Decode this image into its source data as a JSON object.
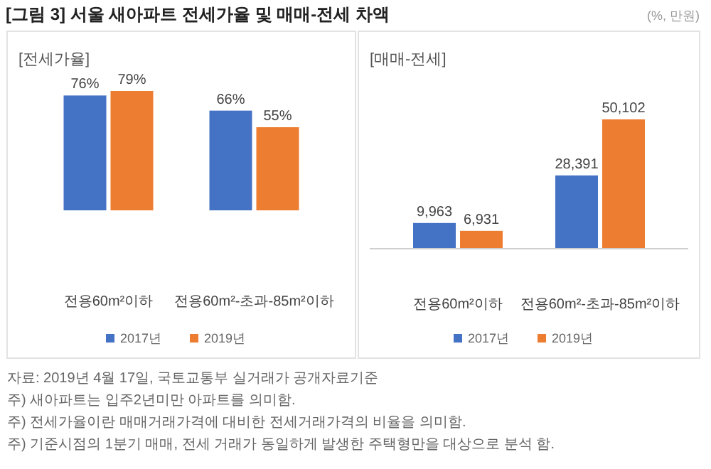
{
  "chart_data": [
    {
      "type": "bar",
      "title": "[전세가율]",
      "categories": [
        "전용60m²이하",
        "전용60m²-초과-85m²이하"
      ],
      "series": [
        {
          "name": "2017년",
          "color": "#4472c4",
          "values": [
            76,
            66
          ],
          "value_labels": [
            "76%",
            "66%"
          ]
        },
        {
          "name": "2019년",
          "color": "#ed7d31",
          "values": [
            79,
            55
          ],
          "value_labels": [
            "79%",
            "55%"
          ]
        }
      ],
      "legend": "bottom",
      "annotations": [
        "[그림 3] 서울 새아파트 전세가율 및 매매-전세 차액",
        "(%, 만원)",
        "자료: 2019년 4월 17일, 국토교통부 실거래가 공개자료기준",
        "주) 새아파트는 입주2년미만 아파트를 의미함.",
        "주) 전세가율이란 매매거래가격에 대비한 전세거래가격의 비율을 의미함.",
        "주) 기준시점의 1분기 매매, 전세 거래가 동일하게 발생한 주택형만을 대상으로 분석 함."
      ]
    },
    {
      "type": "bar",
      "title": "[매매-전세]",
      "categories": [
        "전용60m²이하",
        "전용60m²-초과-85m²이하"
      ],
      "series": [
        {
          "name": "2017년",
          "color": "#4472c4",
          "values": [
            9963,
            28391
          ],
          "value_labels": [
            "9,963",
            "28,391"
          ]
        },
        {
          "name": "2019년",
          "color": "#ed7d31",
          "values": [
            6931,
            50102
          ],
          "value_labels": [
            "6,931",
            "50,102"
          ]
        }
      ],
      "legend": "bottom"
    }
  ]
}
